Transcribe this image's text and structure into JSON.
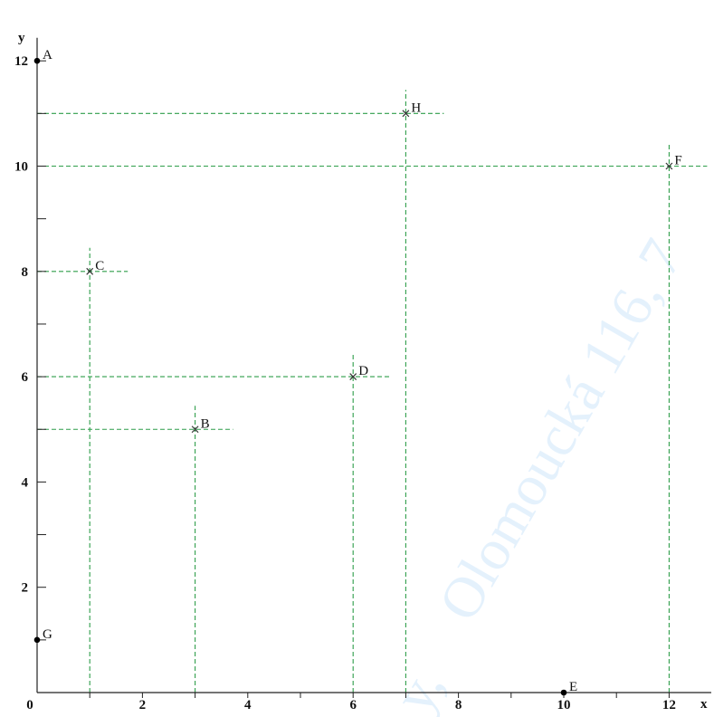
{
  "chart_data": {
    "type": "scatter",
    "xlabel": "x",
    "ylabel": "y",
    "xlim": [
      0,
      12.8
    ],
    "ylim": [
      0,
      12.3
    ],
    "x_ticks": [
      1,
      2,
      3,
      4,
      5,
      6,
      7,
      8,
      9,
      10,
      11,
      12
    ],
    "x_tick_labels": [
      "0",
      "2",
      "4",
      "6",
      "8",
      "10",
      "12"
    ],
    "y_ticks": [
      1,
      2,
      3,
      4,
      5,
      6,
      7,
      8,
      9,
      10,
      11,
      12
    ],
    "y_tick_labels": [
      "2",
      "4",
      "6",
      "8",
      "10",
      "12"
    ],
    "grid": false,
    "guide_line_color": "#2e9e4a",
    "points": [
      {
        "label": "A",
        "x": 0,
        "y": 12,
        "marker": "dot",
        "guides": false
      },
      {
        "label": "B",
        "x": 3,
        "y": 5,
        "marker": "x",
        "guides": true
      },
      {
        "label": "C",
        "x": 1,
        "y": 8,
        "marker": "x",
        "guides": true
      },
      {
        "label": "D",
        "x": 6,
        "y": 6,
        "marker": "x",
        "guides": true
      },
      {
        "label": "E",
        "x": 10,
        "y": 0,
        "marker": "dot",
        "guides": false
      },
      {
        "label": "F",
        "x": 12,
        "y": 10,
        "marker": "x",
        "guides": true
      },
      {
        "label": "G",
        "x": 0,
        "y": 1,
        "marker": "dot",
        "guides": false
      },
      {
        "label": "H",
        "x": 7,
        "y": 11,
        "marker": "x",
        "guides": true
      }
    ]
  },
  "watermark": {
    "text": "Olomoucká 116, 7",
    "text2": "y,",
    "color": "#cfe6fb"
  }
}
